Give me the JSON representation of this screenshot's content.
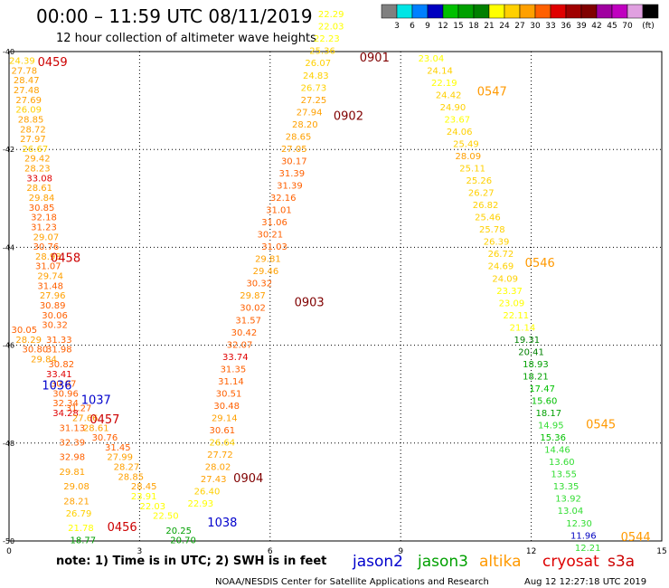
{
  "header": {
    "title": "00:00 – 11:59 UTC 08/11/2019",
    "subtitle": "12 hour collection of altimeter wave heights"
  },
  "colorbar": {
    "colors": [
      "#808080",
      "#00e5e5",
      "#0080ff",
      "#0000c0",
      "#00c000",
      "#00a000",
      "#008000",
      "#ffff00",
      "#ffd000",
      "#ffa000",
      "#ff6000",
      "#e00000",
      "#a00000",
      "#800000",
      "#a000a0",
      "#c000c0",
      "#e0a0e0",
      "#000000"
    ],
    "labels": [
      "3",
      "6",
      "9",
      "12",
      "15",
      "18",
      "21",
      "24",
      "27",
      "30",
      "33",
      "36",
      "39",
      "42",
      "45",
      "70"
    ],
    "unit": "(ft)"
  },
  "footer": {
    "note": "note:  1) Time is in UTC;  2) SWH is in feet",
    "credit": "NOAA/NESDIS Center for Satellite Applications and Research",
    "timestamp": "Aug 12 12:27:18 UTC 2019"
  },
  "satellites": [
    {
      "name": "jason2",
      "color": "#0000cc"
    },
    {
      "name": "jason3",
      "color": "#00a000"
    },
    {
      "name": "altika",
      "color": "#ff9900"
    },
    {
      "name": "cryosat",
      "color": "#dd0000"
    },
    {
      "name": "s3a",
      "color": "#cc0000"
    }
  ],
  "chart_data": {
    "type": "scatter",
    "xlim": [
      0,
      15
    ],
    "ylim": [
      -50,
      -40
    ],
    "xticks": [
      "0",
      "3",
      "6",
      "9",
      "12",
      "15"
    ],
    "yticks": [
      "-40",
      "-42",
      "-44",
      "-46",
      "-48",
      "-50"
    ],
    "grid": true,
    "passes": [
      {
        "label": "0459",
        "color": "#cc0000",
        "x": 1.0,
        "y": -40.3
      },
      {
        "label": "0458",
        "color": "#cc0000",
        "x": 1.3,
        "y": -44.3
      },
      {
        "label": "1036",
        "color": "#0000cc",
        "x": 1.1,
        "y": -46.9
      },
      {
        "label": "1037",
        "color": "#0000cc",
        "x": 2.0,
        "y": -47.2
      },
      {
        "label": "0457",
        "color": "#cc0000",
        "x": 2.2,
        "y": -47.6
      },
      {
        "label": "0456",
        "color": "#cc0000",
        "x": 2.6,
        "y": -49.8
      },
      {
        "label": "1038",
        "color": "#0000cc",
        "x": 4.9,
        "y": -49.7
      },
      {
        "label": "0901",
        "color": "#800000",
        "x": 8.4,
        "y": -40.2
      },
      {
        "label": "0902",
        "color": "#800000",
        "x": 7.8,
        "y": -41.4
      },
      {
        "label": "0903",
        "color": "#800000",
        "x": 6.9,
        "y": -45.2
      },
      {
        "label": "0904",
        "color": "#800000",
        "x": 5.5,
        "y": -48.8
      },
      {
        "label": "0547",
        "color": "#ff9900",
        "x": 11.1,
        "y": -40.9
      },
      {
        "label": "0546",
        "color": "#ff9900",
        "x": 12.2,
        "y": -44.4
      },
      {
        "label": "0545",
        "color": "#ff9900",
        "x": 13.6,
        "y": -47.7
      },
      {
        "label": "0544",
        "color": "#ff9900",
        "x": 14.4,
        "y": -50.0
      }
    ],
    "points": [
      {
        "x": 0.3,
        "y": -40.25,
        "v": 24.39,
        "c": "#ffd000"
      },
      {
        "x": 0.35,
        "y": -40.45,
        "v": 27.78,
        "c": "#ffa000"
      },
      {
        "x": 0.4,
        "y": -40.65,
        "v": 28.47,
        "c": "#ffa000"
      },
      {
        "x": 0.4,
        "y": -40.85,
        "v": 27.48,
        "c": "#ffa000"
      },
      {
        "x": 0.45,
        "y": -41.05,
        "v": 27.69,
        "c": "#ffa000"
      },
      {
        "x": 0.45,
        "y": -41.25,
        "v": 26.09,
        "c": "#ffd000"
      },
      {
        "x": 0.5,
        "y": -41.45,
        "v": 28.85,
        "c": "#ffa000"
      },
      {
        "x": 0.55,
        "y": -41.65,
        "v": 28.72,
        "c": "#ffa000"
      },
      {
        "x": 0.55,
        "y": -41.85,
        "v": 27.97,
        "c": "#ffa000"
      },
      {
        "x": 0.6,
        "y": -42.05,
        "v": 26.67,
        "c": "#ffd000"
      },
      {
        "x": 0.65,
        "y": -42.25,
        "v": 29.42,
        "c": "#ffa000"
      },
      {
        "x": 0.65,
        "y": -42.45,
        "v": 28.23,
        "c": "#ffa000"
      },
      {
        "x": 0.7,
        "y": -42.65,
        "v": 33.08,
        "c": "#e00000"
      },
      {
        "x": 0.7,
        "y": -42.85,
        "v": 28.61,
        "c": "#ffa000"
      },
      {
        "x": 0.75,
        "y": -43.05,
        "v": 29.84,
        "c": "#ffa000"
      },
      {
        "x": 0.75,
        "y": -43.25,
        "v": 30.85,
        "c": "#ff6000"
      },
      {
        "x": 0.8,
        "y": -43.45,
        "v": 32.18,
        "c": "#ff6000"
      },
      {
        "x": 0.8,
        "y": -43.65,
        "v": 31.23,
        "c": "#ff6000"
      },
      {
        "x": 0.85,
        "y": -43.85,
        "v": 29.07,
        "c": "#ffa000"
      },
      {
        "x": 0.85,
        "y": -44.05,
        "v": 30.76,
        "c": "#ff6000"
      },
      {
        "x": 0.9,
        "y": -44.25,
        "v": 28.98,
        "c": "#ffa000"
      },
      {
        "x": 0.9,
        "y": -44.45,
        "v": 31.07,
        "c": "#ff6000"
      },
      {
        "x": 0.95,
        "y": -44.65,
        "v": 29.74,
        "c": "#ffa000"
      },
      {
        "x": 0.95,
        "y": -44.85,
        "v": 31.48,
        "c": "#ff6000"
      },
      {
        "x": 1.0,
        "y": -45.05,
        "v": 27.96,
        "c": "#ffa000"
      },
      {
        "x": 1.0,
        "y": -45.25,
        "v": 30.89,
        "c": "#ff6000"
      },
      {
        "x": 1.05,
        "y": -45.45,
        "v": 30.06,
        "c": "#ff6000"
      },
      {
        "x": 1.05,
        "y": -45.65,
        "v": 30.32,
        "c": "#ff6000"
      },
      {
        "x": 0.35,
        "y": -45.75,
        "v": 30.05,
        "c": "#ff6000"
      },
      {
        "x": 0.45,
        "y": -45.95,
        "v": 28.29,
        "c": "#ffa000"
      },
      {
        "x": 0.6,
        "y": -46.15,
        "v": 30.8,
        "c": "#ff6000"
      },
      {
        "x": 1.15,
        "y": -45.95,
        "v": 31.33,
        "c": "#ff6000"
      },
      {
        "x": 1.15,
        "y": -46.15,
        "v": 31.98,
        "c": "#ff6000"
      },
      {
        "x": 0.8,
        "y": -46.35,
        "v": 29.84,
        "c": "#ffa000"
      },
      {
        "x": 1.2,
        "y": -46.45,
        "v": 30.82,
        "c": "#ff6000"
      },
      {
        "x": 1.15,
        "y": -46.65,
        "v": 33.41,
        "c": "#e00000"
      },
      {
        "x": 1.25,
        "y": -46.85,
        "v": 30.97,
        "c": "#ff6000"
      },
      {
        "x": 1.3,
        "y": -47.05,
        "v": 30.96,
        "c": "#ff6000"
      },
      {
        "x": 1.3,
        "y": -47.25,
        "v": 32.34,
        "c": "#ff6000"
      },
      {
        "x": 1.6,
        "y": -47.35,
        "v": 31.27,
        "c": "#ff6000"
      },
      {
        "x": 1.3,
        "y": -47.45,
        "v": 34.28,
        "c": "#e00000"
      },
      {
        "x": 1.75,
        "y": -47.55,
        "v": 27.66,
        "c": "#ffa000"
      },
      {
        "x": 1.45,
        "y": -47.75,
        "v": 31.13,
        "c": "#ff6000"
      },
      {
        "x": 2.0,
        "y": -47.75,
        "v": 28.61,
        "c": "#ffa000"
      },
      {
        "x": 2.2,
        "y": -47.95,
        "v": 30.76,
        "c": "#ff6000"
      },
      {
        "x": 1.45,
        "y": -48.05,
        "v": 32.39,
        "c": "#ff6000"
      },
      {
        "x": 2.5,
        "y": -48.15,
        "v": 31.45,
        "c": "#ff6000"
      },
      {
        "x": 1.45,
        "y": -48.35,
        "v": 32.98,
        "c": "#ff6000"
      },
      {
        "x": 2.55,
        "y": -48.35,
        "v": 27.99,
        "c": "#ffa000"
      },
      {
        "x": 1.45,
        "y": -48.65,
        "v": 29.81,
        "c": "#ffa000"
      },
      {
        "x": 2.7,
        "y": -48.55,
        "v": 28.27,
        "c": "#ffa000"
      },
      {
        "x": 2.8,
        "y": -48.75,
        "v": 28.85,
        "c": "#ffa000"
      },
      {
        "x": 1.55,
        "y": -48.95,
        "v": 29.08,
        "c": "#ffa000"
      },
      {
        "x": 3.1,
        "y": -48.95,
        "v": 28.45,
        "c": "#ffa000"
      },
      {
        "x": 1.55,
        "y": -49.25,
        "v": 28.21,
        "c": "#ffa000"
      },
      {
        "x": 3.1,
        "y": -49.15,
        "v": 23.91,
        "c": "#ffff00"
      },
      {
        "x": 1.6,
        "y": -49.5,
        "v": 26.79,
        "c": "#ffd000"
      },
      {
        "x": 3.3,
        "y": -49.35,
        "v": 22.03,
        "c": "#ffff00"
      },
      {
        "x": 1.65,
        "y": -49.8,
        "v": 21.78,
        "c": "#ffff00"
      },
      {
        "x": 3.6,
        "y": -49.55,
        "v": 22.5,
        "c": "#ffff00"
      },
      {
        "x": 1.7,
        "y": -50.05,
        "v": 18.77,
        "c": "#00a000"
      },
      {
        "x": 3.9,
        "y": -49.85,
        "v": 20.25,
        "c": "#00a000"
      },
      {
        "x": 4.0,
        "y": -50.05,
        "v": 20.7,
        "c": "#00a000"
      },
      {
        "x": 4.4,
        "y": -49.3,
        "v": 22.93,
        "c": "#ffff00"
      },
      {
        "x": 4.55,
        "y": -49.05,
        "v": 26.4,
        "c": "#ffd000"
      },
      {
        "x": 4.7,
        "y": -48.8,
        "v": 27.43,
        "c": "#ffa000"
      },
      {
        "x": 4.8,
        "y": -48.55,
        "v": 28.02,
        "c": "#ffa000"
      },
      {
        "x": 4.85,
        "y": -48.3,
        "v": 27.72,
        "c": "#ffa000"
      },
      {
        "x": 4.9,
        "y": -48.05,
        "v": 26.64,
        "c": "#ffd000"
      },
      {
        "x": 4.9,
        "y": -47.8,
        "v": 30.61,
        "c": "#ff6000"
      },
      {
        "x": 4.95,
        "y": -47.55,
        "v": 29.14,
        "c": "#ffa000"
      },
      {
        "x": 5.0,
        "y": -47.3,
        "v": 30.48,
        "c": "#ff6000"
      },
      {
        "x": 5.05,
        "y": -47.05,
        "v": 30.51,
        "c": "#ff6000"
      },
      {
        "x": 5.1,
        "y": -46.8,
        "v": 31.14,
        "c": "#ff6000"
      },
      {
        "x": 5.15,
        "y": -46.55,
        "v": 31.35,
        "c": "#ff6000"
      },
      {
        "x": 5.2,
        "y": -46.3,
        "v": 33.74,
        "c": "#e00000"
      },
      {
        "x": 5.3,
        "y": -46.05,
        "v": 32.07,
        "c": "#ff6000"
      },
      {
        "x": 5.4,
        "y": -45.8,
        "v": 30.42,
        "c": "#ff6000"
      },
      {
        "x": 5.5,
        "y": -45.55,
        "v": 31.57,
        "c": "#ff6000"
      },
      {
        "x": 5.6,
        "y": -45.3,
        "v": 30.02,
        "c": "#ff6000"
      },
      {
        "x": 5.6,
        "y": -45.05,
        "v": 29.87,
        "c": "#ffa000"
      },
      {
        "x": 5.75,
        "y": -44.8,
        "v": 30.32,
        "c": "#ff6000"
      },
      {
        "x": 5.9,
        "y": -44.55,
        "v": 29.46,
        "c": "#ffa000"
      },
      {
        "x": 5.95,
        "y": -44.3,
        "v": 29.81,
        "c": "#ffa000"
      },
      {
        "x": 6.1,
        "y": -44.05,
        "v": 31.03,
        "c": "#ff6000"
      },
      {
        "x": 6.0,
        "y": -43.8,
        "v": 30.21,
        "c": "#ff6000"
      },
      {
        "x": 6.1,
        "y": -43.55,
        "v": 31.06,
        "c": "#ff6000"
      },
      {
        "x": 6.2,
        "y": -43.3,
        "v": 31.01,
        "c": "#ff6000"
      },
      {
        "x": 6.3,
        "y": -43.05,
        "v": 32.16,
        "c": "#ff6000"
      },
      {
        "x": 6.45,
        "y": -42.8,
        "v": 31.39,
        "c": "#ff6000"
      },
      {
        "x": 6.5,
        "y": -42.55,
        "v": 31.39,
        "c": "#ff6000"
      },
      {
        "x": 6.55,
        "y": -42.3,
        "v": 30.17,
        "c": "#ff6000"
      },
      {
        "x": 6.55,
        "y": -42.05,
        "v": 27.05,
        "c": "#ffa000"
      },
      {
        "x": 6.65,
        "y": -41.8,
        "v": 28.65,
        "c": "#ffa000"
      },
      {
        "x": 6.8,
        "y": -41.55,
        "v": 28.2,
        "c": "#ffa000"
      },
      {
        "x": 6.9,
        "y": -41.3,
        "v": 27.94,
        "c": "#ffa000"
      },
      {
        "x": 7.0,
        "y": -41.05,
        "v": 27.25,
        "c": "#ffa000"
      },
      {
        "x": 7.0,
        "y": -40.8,
        "v": 26.73,
        "c": "#ffd000"
      },
      {
        "x": 7.05,
        "y": -40.55,
        "v": 24.83,
        "c": "#ffd000"
      },
      {
        "x": 7.1,
        "y": -40.3,
        "v": 26.07,
        "c": "#ffd000"
      },
      {
        "x": 7.2,
        "y": -40.05,
        "v": 25.36,
        "c": "#ffd000"
      },
      {
        "x": 7.3,
        "y": -39.8,
        "v": 22.23,
        "c": "#ffff00"
      },
      {
        "x": 7.4,
        "y": -39.55,
        "v": 22.03,
        "c": "#ffff00"
      },
      {
        "x": 7.4,
        "y": -39.3,
        "v": 22.29,
        "c": "#ffff00"
      },
      {
        "x": 9.7,
        "y": -40.2,
        "v": 23.04,
        "c": "#ffff00"
      },
      {
        "x": 9.9,
        "y": -40.45,
        "v": 24.14,
        "c": "#ffd000"
      },
      {
        "x": 10.0,
        "y": -40.7,
        "v": 22.19,
        "c": "#ffff00"
      },
      {
        "x": 10.1,
        "y": -40.95,
        "v": 24.42,
        "c": "#ffd000"
      },
      {
        "x": 10.2,
        "y": -41.2,
        "v": 24.9,
        "c": "#ffd000"
      },
      {
        "x": 10.3,
        "y": -41.45,
        "v": 23.67,
        "c": "#ffff00"
      },
      {
        "x": 10.35,
        "y": -41.7,
        "v": 24.06,
        "c": "#ffd000"
      },
      {
        "x": 10.5,
        "y": -41.95,
        "v": 25.49,
        "c": "#ffd000"
      },
      {
        "x": 10.55,
        "y": -42.2,
        "v": 28.09,
        "c": "#ffa000"
      },
      {
        "x": 10.65,
        "y": -42.45,
        "v": 25.11,
        "c": "#ffd000"
      },
      {
        "x": 10.8,
        "y": -42.7,
        "v": 25.26,
        "c": "#ffd000"
      },
      {
        "x": 10.85,
        "y": -42.95,
        "v": 26.27,
        "c": "#ffd000"
      },
      {
        "x": 10.95,
        "y": -43.2,
        "v": 26.82,
        "c": "#ffd000"
      },
      {
        "x": 11.0,
        "y": -43.45,
        "v": 25.46,
        "c": "#ffd000"
      },
      {
        "x": 11.1,
        "y": -43.7,
        "v": 25.78,
        "c": "#ffd000"
      },
      {
        "x": 11.2,
        "y": -43.95,
        "v": 26.39,
        "c": "#ffd000"
      },
      {
        "x": 11.3,
        "y": -44.2,
        "v": 26.72,
        "c": "#ffd000"
      },
      {
        "x": 11.3,
        "y": -44.45,
        "v": 24.69,
        "c": "#ffd000"
      },
      {
        "x": 11.4,
        "y": -44.7,
        "v": 24.09,
        "c": "#ffd000"
      },
      {
        "x": 11.5,
        "y": -44.95,
        "v": 23.37,
        "c": "#ffff00"
      },
      {
        "x": 11.55,
        "y": -45.2,
        "v": 23.09,
        "c": "#ffff00"
      },
      {
        "x": 11.65,
        "y": -45.45,
        "v": 22.11,
        "c": "#ffff00"
      },
      {
        "x": 11.8,
        "y": -45.7,
        "v": 21.14,
        "c": "#ffff00"
      },
      {
        "x": 11.9,
        "y": -45.95,
        "v": 19.31,
        "c": "#008000"
      },
      {
        "x": 12.0,
        "y": -46.2,
        "v": 20.41,
        "c": "#008000"
      },
      {
        "x": 12.1,
        "y": -46.45,
        "v": 18.93,
        "c": "#00a000"
      },
      {
        "x": 12.1,
        "y": -46.7,
        "v": 18.21,
        "c": "#00a000"
      },
      {
        "x": 12.25,
        "y": -46.95,
        "v": 17.47,
        "c": "#00c000"
      },
      {
        "x": 12.3,
        "y": -47.2,
        "v": 15.6,
        "c": "#00c000"
      },
      {
        "x": 12.4,
        "y": -47.45,
        "v": 18.17,
        "c": "#00a000"
      },
      {
        "x": 12.45,
        "y": -47.7,
        "v": 14.95,
        "c": "#33dd33"
      },
      {
        "x": 12.5,
        "y": -47.95,
        "v": 15.36,
        "c": "#00c000"
      },
      {
        "x": 12.6,
        "y": -48.2,
        "v": 14.46,
        "c": "#33dd33"
      },
      {
        "x": 12.7,
        "y": -48.45,
        "v": 13.6,
        "c": "#33dd33"
      },
      {
        "x": 12.75,
        "y": -48.7,
        "v": 13.55,
        "c": "#33dd33"
      },
      {
        "x": 12.8,
        "y": -48.95,
        "v": 13.35,
        "c": "#33dd33"
      },
      {
        "x": 12.85,
        "y": -49.2,
        "v": 13.92,
        "c": "#33dd33"
      },
      {
        "x": 12.9,
        "y": -49.45,
        "v": 13.04,
        "c": "#33dd33"
      },
      {
        "x": 13.1,
        "y": -49.7,
        "v": 12.3,
        "c": "#33dd33"
      },
      {
        "x": 13.2,
        "y": -49.95,
        "v": 11.96,
        "c": "#0000c0"
      },
      {
        "x": 13.3,
        "y": -50.2,
        "v": 12.21,
        "c": "#33dd33"
      }
    ]
  }
}
